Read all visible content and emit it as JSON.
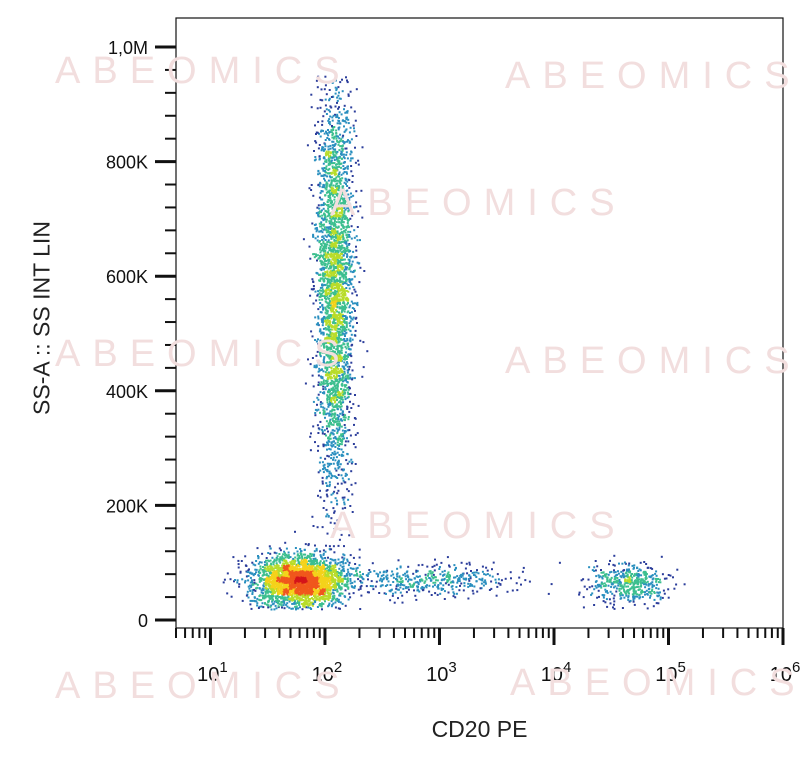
{
  "watermark": "ABEOMICS",
  "chart_data": {
    "type": "scatter",
    "subtype": "flow-cytometry-density-dot-plot",
    "title": "",
    "xlabel": "CD20 PE",
    "ylabel": "SS-A :: SS INT LIN",
    "x_scale": "log",
    "xlim": [
      5,
      1000000
    ],
    "y_scale": "linear",
    "ylim": [
      0,
      1000000
    ],
    "x_ticks": [
      {
        "value": 10,
        "base": "10",
        "exp": "1"
      },
      {
        "value": 100,
        "base": "10",
        "exp": "2"
      },
      {
        "value": 1000,
        "base": "10",
        "exp": "3"
      },
      {
        "value": 10000,
        "base": "10",
        "exp": "4"
      },
      {
        "value": 100000,
        "base": "10",
        "exp": "5"
      },
      {
        "value": 1000000,
        "base": "10",
        "exp": "6"
      }
    ],
    "y_ticks": [
      {
        "value": 0,
        "label": "0"
      },
      {
        "value": 200000,
        "label": "200K"
      },
      {
        "value": 400000,
        "label": "400K"
      },
      {
        "value": 600000,
        "label": "600K"
      },
      {
        "value": 800000,
        "label": "800K"
      },
      {
        "value": 1000000,
        "label": "1,0M"
      }
    ],
    "color_scale": [
      "#2b3d9b",
      "#2a8fbf",
      "#3cbf8f",
      "#b8dc2a",
      "#f4d21a",
      "#f0571c",
      "#d4141a"
    ],
    "grid": false,
    "legend": "none",
    "populations": [
      {
        "center_x": 60,
        "center_y": 70000,
        "sd_log_x": 0.2,
        "sd_y": 22000,
        "count": 2800
      },
      {
        "center_x": 120,
        "center_y": 580000,
        "sd_log_x": 0.08,
        "sd_y": 180000,
        "count": 3200
      },
      {
        "center_x": 800,
        "center_y": 70000,
        "sd_log_x": 0.35,
        "sd_y": 15000,
        "count": 400
      },
      {
        "center_x": 45000,
        "center_y": 65000,
        "sd_log_x": 0.16,
        "sd_y": 18000,
        "count": 450
      }
    ]
  }
}
